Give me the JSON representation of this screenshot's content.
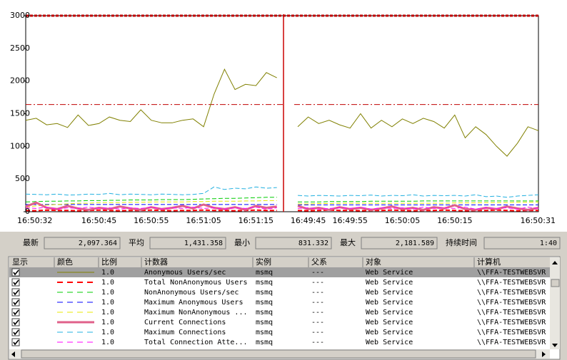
{
  "chart_data": {
    "type": "line",
    "categories": [
      "16:50:32",
      null,
      null,
      null,
      null,
      null,
      null,
      "16:50:45",
      null,
      null,
      null,
      null,
      "16:50:55",
      null,
      null,
      null,
      null,
      "16:51:05",
      null,
      null,
      null,
      null,
      "16:51:15",
      null,
      null,
      null,
      null,
      "16:49:45",
      null,
      null,
      null,
      "16:49:55",
      null,
      null,
      null,
      null,
      "16:50:05",
      null,
      null,
      null,
      null,
      "16:50:15",
      null,
      null,
      null,
      null,
      null,
      null,
      null,
      "16:50:31"
    ],
    "ylim": [
      0,
      3000
    ],
    "yticks": [
      0,
      500,
      1000,
      1500,
      2000,
      2500,
      3000
    ],
    "grid": false,
    "reference_lines": [
      {
        "value": 1640,
        "color": "#c00000"
      }
    ],
    "series": [
      {
        "name": "Anonymous Users/sec",
        "color": "#808000",
        "dash": false,
        "width": 1,
        "scale": "1.0",
        "instance": "msmq",
        "parent": "---",
        "object": "Web Service",
        "computer": "\\\\FFA-TESTWEBSVR",
        "values": [
          1400,
          1430,
          1330,
          1350,
          1290,
          1480,
          1320,
          1350,
          1450,
          1400,
          1380,
          1560,
          1400,
          1360,
          1360,
          1400,
          1420,
          1300,
          1800,
          2180,
          1870,
          1950,
          1930,
          2130,
          2050,
          null,
          1300,
          1450,
          1350,
          1400,
          1330,
          1280,
          1500,
          1280,
          1400,
          1300,
          1420,
          1350,
          1430,
          1380,
          1280,
          1480,
          1130,
          1300,
          1180,
          1000,
          850,
          1050,
          1300,
          1240
        ]
      },
      {
        "name": "Total NonAnonymous Users",
        "color": "#ff0000",
        "dash": true,
        "width": 2,
        "scale": "1.0",
        "instance": "msmq",
        "parent": "---",
        "object": "Web Service",
        "computer": "\\\\FFA-TESTWEBSVR",
        "values": [
          20,
          15,
          25,
          20,
          20,
          15,
          20,
          25,
          20,
          15,
          20,
          20,
          25,
          20,
          15,
          20,
          20,
          25,
          20,
          20,
          15,
          20,
          25,
          20,
          20,
          null,
          20,
          15,
          20,
          25,
          20,
          20,
          15,
          20,
          20,
          25,
          20,
          15,
          20,
          20,
          25,
          20,
          15,
          20,
          20,
          25,
          20,
          15,
          20,
          20
        ]
      },
      {
        "name": "NonAnonymous Users/sec",
        "color": "#00cc00",
        "dash": true,
        "width": 1,
        "scale": "1.0",
        "instance": "msmq",
        "parent": "---",
        "object": "Web Service",
        "computer": "\\\\FFA-TESTWEBSVR",
        "values": [
          150,
          155,
          160,
          160,
          165,
          165,
          170,
          170,
          175,
          175,
          180,
          180,
          180,
          185,
          185,
          185,
          190,
          195,
          200,
          205,
          205,
          210,
          215,
          220,
          220,
          null,
          150,
          150,
          150,
          155,
          155,
          155,
          155,
          160,
          160,
          160,
          160,
          160,
          165,
          165,
          165,
          165,
          165,
          165,
          165,
          165,
          165,
          165,
          165,
          165
        ]
      },
      {
        "name": "Maximum Anonymous Users",
        "color": "#0000ff",
        "dash": true,
        "width": 1,
        "scale": "1.0",
        "instance": "msmq",
        "parent": "---",
        "object": "Web Service",
        "computer": "\\\\FFA-TESTWEBSVR",
        "values": [
          110,
          110,
          110,
          110,
          110,
          110,
          110,
          110,
          110,
          110,
          110,
          110,
          110,
          110,
          110,
          110,
          110,
          110,
          110,
          110,
          110,
          110,
          110,
          110,
          110,
          null,
          105,
          105,
          105,
          105,
          105,
          105,
          105,
          105,
          105,
          105,
          105,
          105,
          105,
          105,
          105,
          105,
          105,
          105,
          105,
          105,
          105,
          105,
          105,
          105
        ]
      },
      {
        "name": "Maximum NonAnonymous ...",
        "color": "#e8e800",
        "dash": true,
        "width": 1,
        "scale": "1.0",
        "instance": "msmq",
        "parent": "---",
        "object": "Web Service",
        "computer": "\\\\FFA-TESTWEBSVR",
        "values": [
          70,
          90,
          100,
          110,
          120,
          130,
          130,
          140,
          140,
          140,
          145,
          145,
          150,
          150,
          150,
          150,
          155,
          155,
          160,
          160,
          160,
          165,
          165,
          170,
          170,
          null,
          120,
          120,
          125,
          125,
          130,
          130,
          130,
          130,
          130,
          130,
          130,
          130,
          130,
          130,
          130,
          135,
          135,
          135,
          140,
          140,
          140,
          145,
          145,
          150
        ]
      },
      {
        "name": "Current Connections",
        "color": "#e0608a",
        "dash": false,
        "width": 3,
        "scale": "1.0",
        "instance": "msmq",
        "parent": "---",
        "object": "Web Service",
        "computer": "\\\\FFA-TESTWEBSVR",
        "values": [
          80,
          140,
          60,
          40,
          90,
          50,
          30,
          60,
          40,
          80,
          50,
          30,
          70,
          40,
          60,
          90,
          50,
          110,
          60,
          40,
          70,
          30,
          90,
          60,
          80,
          null,
          90,
          40,
          60,
          30,
          70,
          40,
          60,
          30,
          50,
          80,
          40,
          60,
          30,
          70,
          50,
          100,
          40,
          30,
          60,
          40,
          80,
          50,
          30,
          60
        ]
      },
      {
        "name": "Maximum Connections",
        "color": "#22b0e0",
        "dash": true,
        "width": 1,
        "scale": "1.0",
        "instance": "msmq",
        "parent": "---",
        "object": "Web Service",
        "computer": "\\\\FFA-TESTWEBSVR",
        "values": [
          270,
          265,
          260,
          270,
          255,
          260,
          270,
          265,
          280,
          260,
          270,
          265,
          260,
          270,
          265,
          260,
          265,
          280,
          380,
          340,
          360,
          350,
          380,
          360,
          370,
          null,
          250,
          240,
          250,
          245,
          240,
          250,
          245,
          255,
          240,
          250,
          245,
          260,
          240,
          250,
          245,
          250,
          240,
          260,
          230,
          240,
          220,
          240,
          250,
          260
        ]
      },
      {
        "name": "Total Connection Atte...",
        "color": "#ff00ff",
        "dash": true,
        "width": 1,
        "scale": "1.0",
        "instance": "msmq",
        "parent": "---",
        "object": "Web Service",
        "computer": "\\\\FFA-TESTWEBSVR",
        "values": [
          60,
          50,
          70,
          40,
          60,
          50,
          70,
          50,
          60,
          40,
          60,
          50,
          70,
          40,
          60,
          50,
          70,
          50,
          60,
          40,
          60,
          50,
          70,
          40,
          60,
          null,
          50,
          60,
          40,
          50,
          60,
          50,
          70,
          40,
          60,
          50,
          60,
          40,
          70,
          50,
          60,
          50,
          70,
          40,
          60,
          50,
          60,
          40,
          70,
          50
        ]
      }
    ]
  },
  "stats": [
    {
      "label": "最新",
      "value": "2,097.364"
    },
    {
      "label": "平均",
      "value": "1,431.358"
    },
    {
      "label": "最小",
      "value": "831.332"
    },
    {
      "label": "最大",
      "value": "2,181.589"
    },
    {
      "label": "持续时间",
      "value": "1:40"
    }
  ],
  "table": {
    "headers": [
      "显示",
      "颜色",
      "比例",
      "计数器",
      "实例",
      "父系",
      "对象",
      "计算机"
    ]
  }
}
